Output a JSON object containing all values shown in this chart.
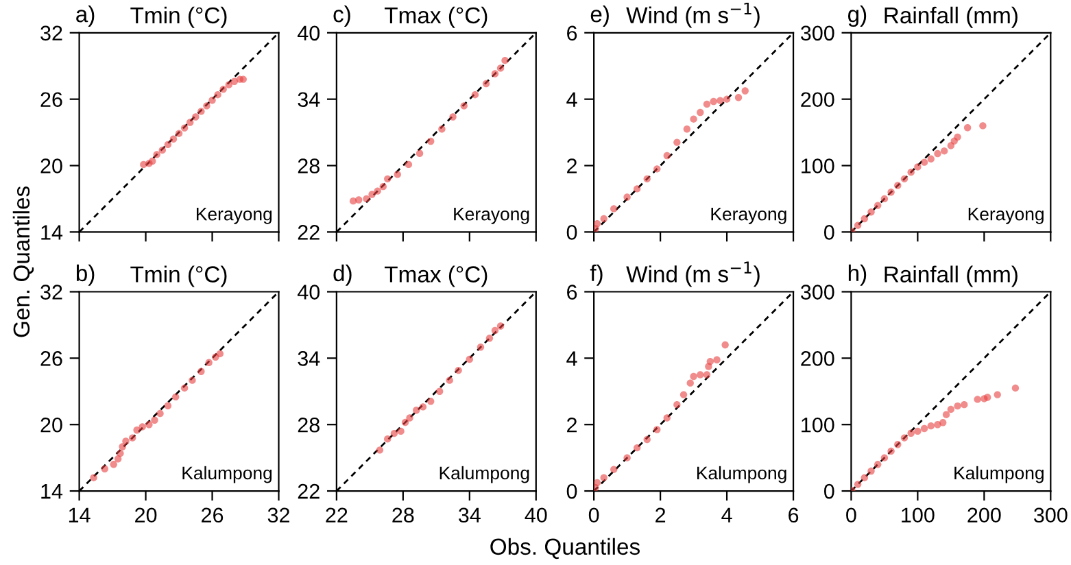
{
  "chart_data": [
    {
      "type": "scatter",
      "title": "Tmin (°C)",
      "annotations": [
        "a)",
        "Kerayong"
      ],
      "ylabel": "Gen. Quantiles",
      "xlim": [
        14,
        32
      ],
      "ylim": [
        14,
        32
      ],
      "xticks": [
        14,
        20,
        26,
        32
      ],
      "yticks": [
        14,
        20,
        26,
        32
      ],
      "tick_labels": "y",
      "series": [
        {
          "color": "#e8403f",
          "marker": "circle",
          "x": [
            19.8,
            20.3,
            20.6,
            21,
            21.5,
            22,
            22.5,
            23,
            23.5,
            24,
            24.5,
            25,
            25.5,
            26,
            26.5,
            27,
            27.5,
            28,
            28.5,
            28.8
          ],
          "values": [
            20.1,
            20.2,
            20.4,
            21.0,
            21.4,
            21.9,
            22.4,
            22.9,
            23.4,
            23.9,
            24.4,
            24.9,
            25.4,
            25.9,
            26.4,
            26.9,
            27.3,
            27.6,
            27.8,
            27.8
          ]
        },
        {
          "type": "line",
          "line_style": "dashed",
          "color": "#000000",
          "x": [
            14,
            32
          ],
          "values": [
            14,
            32
          ]
        }
      ]
    },
    {
      "type": "scatter",
      "title": "Tmax (°C)",
      "annotations": [
        "c)",
        "Kerayong"
      ],
      "xlim": [
        22,
        40
      ],
      "ylim": [
        22,
        40
      ],
      "xticks": [
        22,
        28,
        34,
        40
      ],
      "yticks": [
        22,
        28,
        34,
        40
      ],
      "tick_labels": "y",
      "series": [
        {
          "color": "#e8403f",
          "marker": "circle",
          "x": [
            23.5,
            24.0,
            24.7,
            25.2,
            25.7,
            26.2,
            26.6,
            27.5,
            28.5,
            29.5,
            30.5,
            31.5,
            32.5,
            33.5,
            34.5,
            35.5,
            36.3,
            36.8,
            37.2
          ],
          "values": [
            24.8,
            24.9,
            25.0,
            25.4,
            25.7,
            26.1,
            26.8,
            27.2,
            28.1,
            29.1,
            30.2,
            31.3,
            32.4,
            33.4,
            34.4,
            35.4,
            36.3,
            36.8,
            37.5
          ]
        },
        {
          "type": "line",
          "line_style": "dashed",
          "color": "#000000",
          "x": [
            22,
            40
          ],
          "values": [
            22,
            40
          ]
        }
      ]
    },
    {
      "type": "scatter",
      "title": "Wind (m s$^{−1}$)",
      "annotations": [
        "e)",
        "Kerayong"
      ],
      "xlim": [
        0,
        6
      ],
      "ylim": [
        0,
        6
      ],
      "xticks": [
        0,
        2,
        4,
        6
      ],
      "yticks": [
        0,
        2,
        4,
        6
      ],
      "tick_labels": "y",
      "series": [
        {
          "color": "#e8403f",
          "marker": "circle",
          "x": [
            0.05,
            0.1,
            0.3,
            0.6,
            1.0,
            1.3,
            1.6,
            1.9,
            2.2,
            2.5,
            2.8,
            3.0,
            3.2,
            3.4,
            3.6,
            3.8,
            4.0,
            4.35,
            4.55
          ],
          "values": [
            0.1,
            0.25,
            0.4,
            0.7,
            1.05,
            1.3,
            1.6,
            1.9,
            2.3,
            2.7,
            3.1,
            3.4,
            3.6,
            3.85,
            3.93,
            3.96,
            4.0,
            4.05,
            4.25
          ]
        },
        {
          "type": "line",
          "line_style": "dashed",
          "color": "#000000",
          "x": [
            0,
            6
          ],
          "values": [
            0,
            6
          ]
        }
      ]
    },
    {
      "type": "scatter",
      "title": "Rainfall (mm)",
      "annotations": [
        "g)",
        "Kerayong"
      ],
      "xlim": [
        0,
        300
      ],
      "ylim": [
        0,
        300
      ],
      "xticks": [
        0,
        100,
        200,
        300
      ],
      "yticks": [
        0,
        100,
        200,
        300
      ],
      "tick_labels": "y",
      "series": [
        {
          "color": "#e8403f",
          "marker": "circle",
          "x": [
            1,
            10,
            20,
            30,
            40,
            50,
            60,
            70,
            80,
            90,
            100,
            110,
            120,
            130,
            140,
            150,
            155,
            160,
            175,
            198
          ],
          "values": [
            1,
            10,
            20,
            30,
            40,
            50,
            60,
            70,
            80,
            90,
            98,
            105,
            110,
            118,
            122,
            130,
            137,
            143,
            157,
            160
          ]
        },
        {
          "type": "line",
          "line_style": "dashed",
          "color": "#000000",
          "x": [
            0,
            300
          ],
          "values": [
            0,
            300
          ]
        }
      ]
    },
    {
      "type": "scatter",
      "title": "Tmin (°C)",
      "annotations": [
        "b)",
        "Kalumpong"
      ],
      "xlim": [
        14,
        32
      ],
      "ylim": [
        14,
        32
      ],
      "xticks": [
        14,
        20,
        26,
        32
      ],
      "yticks": [
        14,
        20,
        26,
        32
      ],
      "series": [
        {
          "color": "#e8403f",
          "marker": "circle",
          "x": [
            15.3,
            16.3,
            17.1,
            17.5,
            17.7,
            17.9,
            18.2,
            18.8,
            19.2,
            19.7,
            20.3,
            20.8,
            21.3,
            22,
            22.7,
            23.5,
            24.2,
            25,
            25.7,
            26.3,
            26.7
          ],
          "values": [
            15.2,
            16.0,
            16.4,
            16.9,
            17.4,
            18.0,
            18.5,
            18.8,
            19.5,
            19.8,
            20.0,
            20.4,
            21.0,
            21.7,
            22.5,
            23.3,
            24.0,
            24.8,
            25.6,
            26.1,
            26.4
          ]
        },
        {
          "type": "line",
          "line_style": "dashed",
          "color": "#000000",
          "x": [
            14,
            32
          ],
          "values": [
            14,
            32
          ]
        }
      ]
    },
    {
      "type": "scatter",
      "title": "Tmax (°C)",
      "annotations": [
        "d)",
        "Kalumpong"
      ],
      "xlabel": "Obs. Quantiles",
      "xlim": [
        22,
        40
      ],
      "ylim": [
        22,
        40
      ],
      "xticks": [
        22,
        28,
        34,
        40
      ],
      "yticks": [
        22,
        28,
        34,
        40
      ],
      "series": [
        {
          "color": "#e8403f",
          "marker": "circle",
          "x": [
            25.9,
            26.6,
            27.2,
            27.8,
            28.2,
            28.6,
            29.2,
            29.8,
            30.5,
            31.3,
            32.2,
            33,
            34,
            35,
            35.8,
            36.3,
            36.8
          ],
          "values": [
            25.7,
            26.7,
            27.2,
            27.4,
            28.2,
            28.6,
            29.3,
            29.6,
            30.1,
            31.0,
            32.0,
            32.9,
            33.9,
            35.0,
            35.8,
            36.5,
            36.9
          ]
        },
        {
          "type": "line",
          "line_style": "dashed",
          "color": "#000000",
          "x": [
            22,
            40
          ],
          "values": [
            22,
            40
          ]
        }
      ]
    },
    {
      "type": "scatter",
      "title": "Wind (m s$^{−1}$)",
      "annotations": [
        "f)",
        "Kalumpong"
      ],
      "xlim": [
        0,
        6
      ],
      "ylim": [
        0,
        6
      ],
      "xticks": [
        0,
        2,
        4,
        6
      ],
      "yticks": [
        0,
        2,
        4,
        6
      ],
      "series": [
        {
          "color": "#e8403f",
          "marker": "circle",
          "x": [
            0.05,
            0.1,
            0.3,
            0.6,
            1.0,
            1.3,
            1.6,
            1.9,
            2.2,
            2.5,
            2.7,
            2.9,
            3.0,
            3.2,
            3.4,
            3.45,
            3.5,
            3.7,
            3.95
          ],
          "values": [
            0.1,
            0.25,
            0.4,
            0.65,
            1.0,
            1.3,
            1.55,
            1.85,
            2.2,
            2.6,
            2.9,
            3.25,
            3.45,
            3.5,
            3.5,
            3.75,
            3.9,
            3.95,
            4.4
          ]
        },
        {
          "type": "line",
          "line_style": "dashed",
          "color": "#000000",
          "x": [
            0,
            6
          ],
          "values": [
            0,
            6
          ]
        }
      ]
    },
    {
      "type": "scatter",
      "title": "Rainfall (mm)",
      "annotations": [
        "h)",
        "Kalumpong"
      ],
      "xlim": [
        0,
        300
      ],
      "ylim": [
        0,
        300
      ],
      "xticks": [
        0,
        100,
        200,
        300
      ],
      "yticks": [
        0,
        100,
        200,
        300
      ],
      "series": [
        {
          "color": "#e8403f",
          "marker": "circle",
          "x": [
            1,
            10,
            20,
            30,
            40,
            50,
            60,
            70,
            80,
            90,
            100,
            110,
            120,
            130,
            138,
            143,
            150,
            160,
            170,
            190,
            200,
            205,
            220,
            247
          ],
          "values": [
            1,
            10,
            20,
            30,
            40,
            50,
            60,
            70,
            80,
            87,
            90,
            94,
            98,
            100,
            103,
            115,
            123,
            128,
            130,
            138,
            139,
            141,
            145,
            155
          ]
        },
        {
          "type": "line",
          "line_style": "dashed",
          "color": "#000000",
          "x": [
            0,
            300
          ],
          "values": [
            0,
            300
          ]
        }
      ]
    }
  ]
}
